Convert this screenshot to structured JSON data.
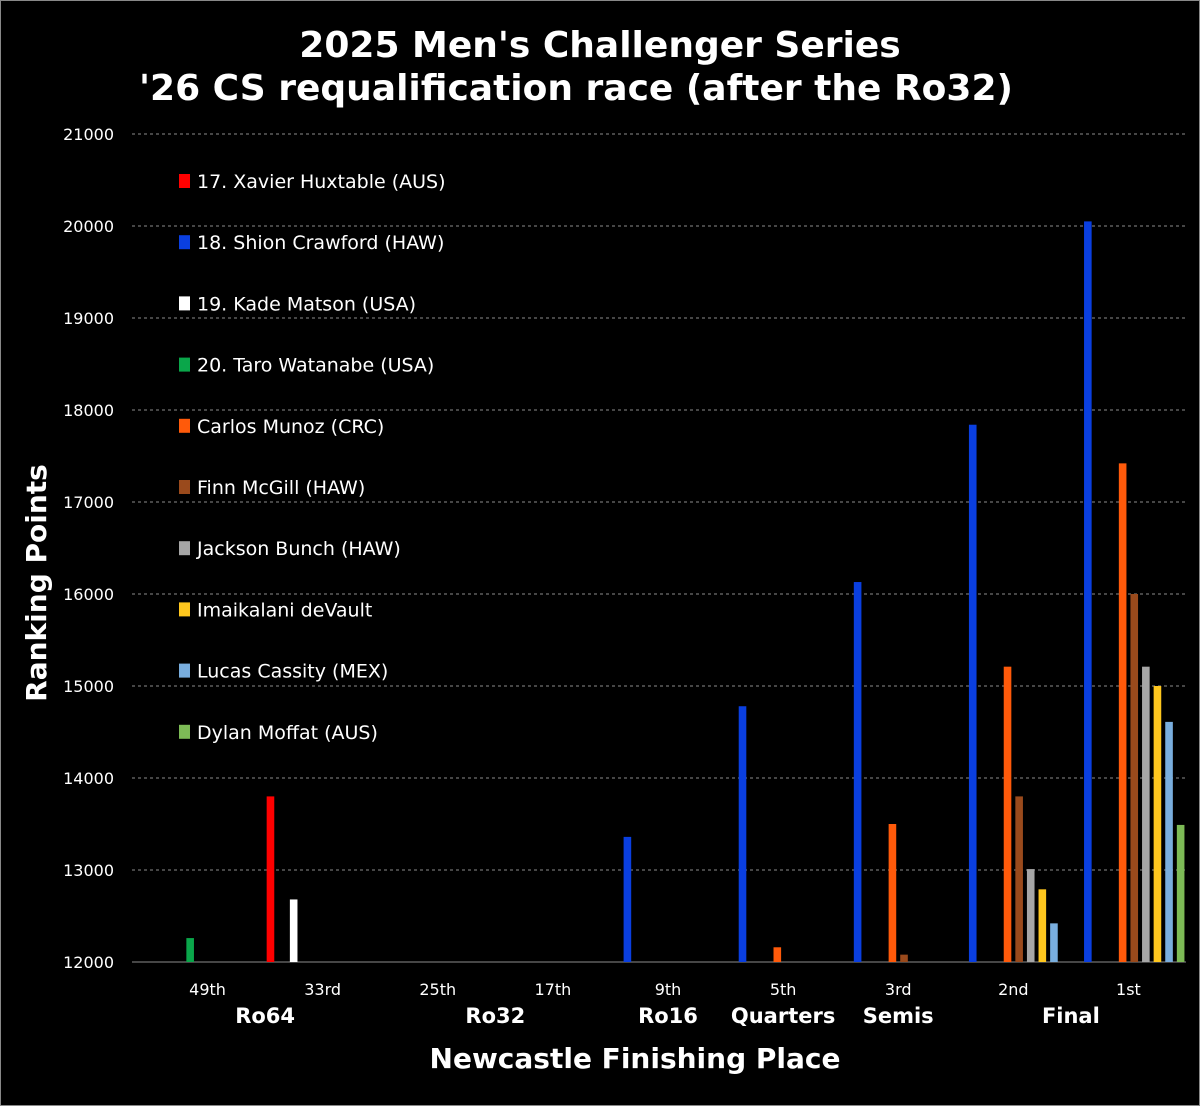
{
  "chart_data": {
    "type": "bar",
    "title": "2025 Men's Challenger Series",
    "subtitle": "'26 CS requalification race (after the Ro32)",
    "xlabel": "Newcastle Finishing Place",
    "ylabel": "Ranking Points",
    "ylim": [
      12000,
      21000
    ],
    "yticks": [
      12000,
      13000,
      14000,
      15000,
      16000,
      17000,
      18000,
      19000,
      20000,
      21000
    ],
    "grid": true,
    "legend_position": "top-left",
    "categories": [
      "49th",
      "33rd",
      "25th",
      "17th",
      "9th",
      "5th",
      "3rd",
      "2nd",
      "1st"
    ],
    "round_labels": [
      "Ro64",
      "Ro32",
      "Ro16",
      "Quarters",
      "Semis",
      "Final"
    ],
    "series": [
      {
        "name": "17. Xavier Huxtable (AUS)",
        "color": "#ff0000",
        "values": [
          null,
          13800,
          null,
          null,
          null,
          null,
          null,
          null,
          null
        ]
      },
      {
        "name": "18. Shion Crawford (HAW)",
        "color": "#0a3fe0",
        "values": [
          null,
          null,
          null,
          null,
          13360,
          14780,
          16130,
          17840,
          20050
        ]
      },
      {
        "name": "19. Kade Matson (USA)",
        "color": "#ffffff",
        "values": [
          null,
          12680,
          null,
          null,
          null,
          null,
          null,
          null,
          null
        ]
      },
      {
        "name": "20. Taro Watanabe (USA)",
        "color": "#0aa64a",
        "values": [
          12260,
          null,
          null,
          null,
          null,
          null,
          null,
          null,
          null
        ]
      },
      {
        "name": "Carlos Munoz (CRC)",
        "color": "#ff5a0a",
        "values": [
          null,
          null,
          null,
          null,
          null,
          12160,
          13500,
          15210,
          17420
        ]
      },
      {
        "name": "Finn McGill (HAW)",
        "color": "#9a4a1c",
        "values": [
          null,
          null,
          null,
          null,
          null,
          null,
          12080,
          13800,
          16000
        ]
      },
      {
        "name": "Jackson Bunch (HAW)",
        "color": "#a6a6a6",
        "values": [
          null,
          null,
          null,
          null,
          null,
          null,
          null,
          13010,
          15210
        ]
      },
      {
        "name": "Imaikalani deVault",
        "color": "#ffc71e",
        "values": [
          null,
          null,
          null,
          null,
          null,
          null,
          null,
          12790,
          15000
        ]
      },
      {
        "name": "Lucas Cassity (MEX)",
        "color": "#79aede",
        "values": [
          null,
          null,
          null,
          null,
          null,
          null,
          null,
          12420,
          14610
        ]
      },
      {
        "name": "Dylan Moffat (AUS)",
        "color": "#7dbb56",
        "values": [
          null,
          null,
          null,
          null,
          null,
          null,
          null,
          null,
          13490
        ]
      }
    ]
  }
}
